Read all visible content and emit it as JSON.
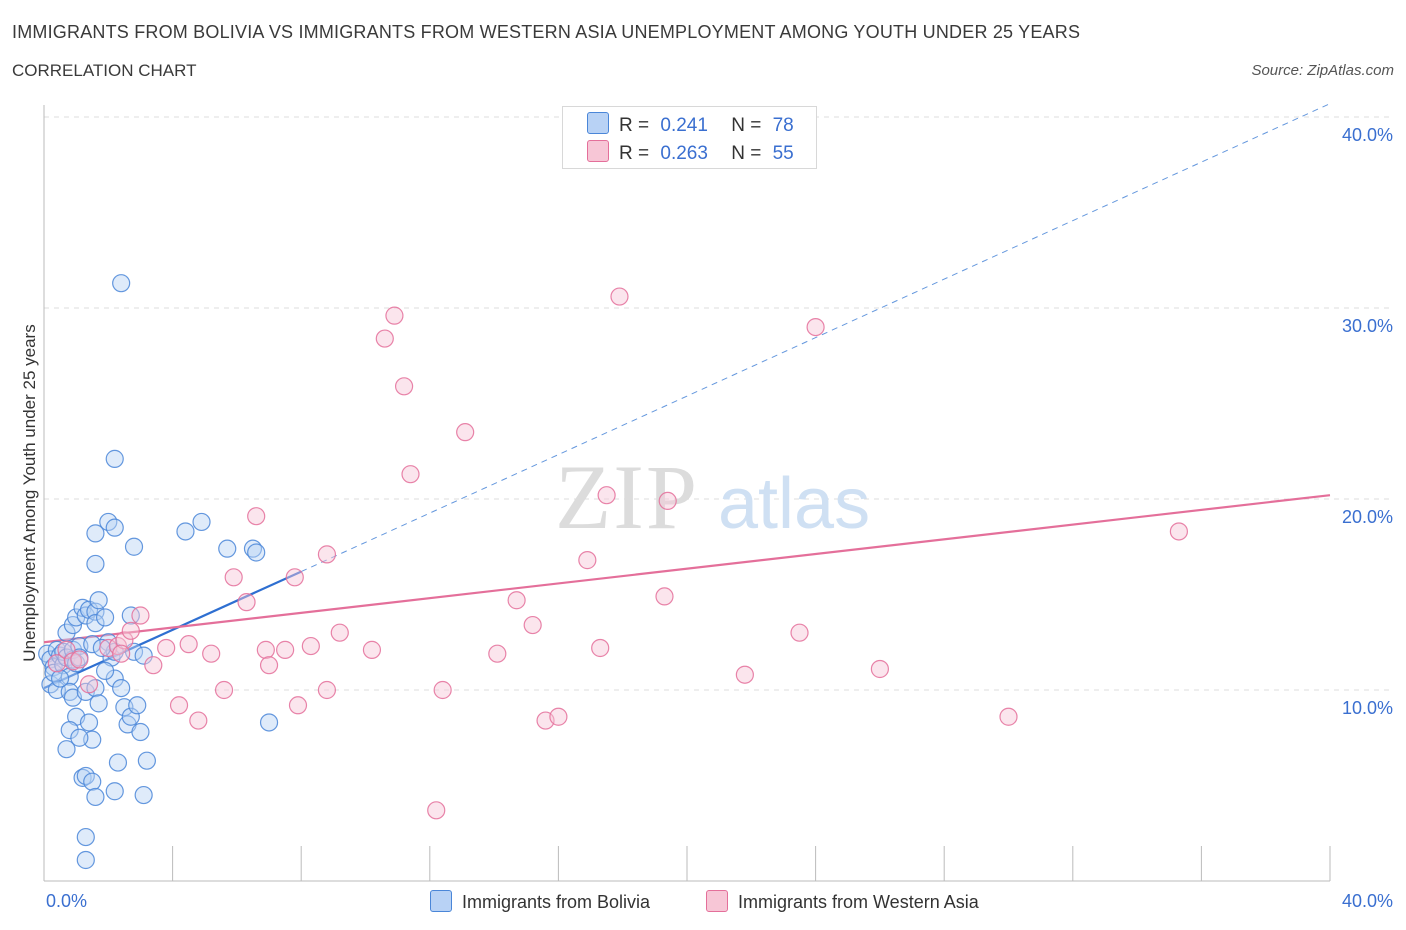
{
  "header": {
    "title": "IMMIGRANTS FROM BOLIVIA VS IMMIGRANTS FROM WESTERN ASIA UNEMPLOYMENT AMONG YOUTH UNDER 25 YEARS",
    "subtitle": "CORRELATION CHART",
    "source": "Source: ZipAtlas.com"
  },
  "colors": {
    "bolivia": "#4a86d8",
    "bolivia_fill": "#b8d2f5",
    "western_asia": "#e46f9a",
    "western_asia_fill": "#f7c6d6",
    "axis_label": "#3a6fd0",
    "grid": "#dcdcdc"
  },
  "legend_top": {
    "row1": {
      "r_label": "R =",
      "r_value": "0.241",
      "n_label": "N =",
      "n_value": "78"
    },
    "row2": {
      "r_label": "R =",
      "r_value": "0.263",
      "n_label": "N =",
      "n_value": "55"
    }
  },
  "legend_bottom": {
    "series1": "Immigrants from Bolivia",
    "series2": "Immigrants from Western Asia"
  },
  "watermark": {
    "zip": "ZIP",
    "atlas": "atlas"
  },
  "chart_data": {
    "type": "scatter",
    "title": "IMMIGRANTS FROM BOLIVIA VS IMMIGRANTS FROM WESTERN ASIA UNEMPLOYMENT AMONG YOUTH UNDER 25 YEARS",
    "xlabel": "",
    "ylabel": "Unemployment Among Youth under 25 years",
    "xlim": [
      0,
      40
    ],
    "ylim": [
      0,
      40
    ],
    "x_tick_labels": [
      "0.0%",
      "40.0%"
    ],
    "y_tick_values": [
      10,
      20,
      30,
      40
    ],
    "y_tick_labels": [
      "10.0%",
      "20.0%",
      "30.0%",
      "40.0%"
    ],
    "grid": true,
    "legend_position": "top-center",
    "series": [
      {
        "name": "Immigrants from Bolivia",
        "r": 0.241,
        "n": 78,
        "trend": {
          "x0": 0,
          "y0": 10.1,
          "x1": 8.0,
          "y1": 16.2,
          "dashed_extension_to": [
            40,
            40.7
          ]
        },
        "points": [
          [
            0.1,
            11.9
          ],
          [
            0.2,
            11.6
          ],
          [
            0.3,
            11.2
          ],
          [
            0.2,
            10.3
          ],
          [
            0.4,
            12.1
          ],
          [
            0.5,
            11.8
          ],
          [
            0.3,
            10.9
          ],
          [
            0.4,
            10.0
          ],
          [
            0.6,
            11.3
          ],
          [
            0.6,
            12.0
          ],
          [
            0.7,
            11.7
          ],
          [
            0.8,
            10.7
          ],
          [
            0.9,
            11.6
          ],
          [
            0.9,
            12.1
          ],
          [
            1.0,
            11.4
          ],
          [
            0.7,
            13.0
          ],
          [
            0.9,
            13.4
          ],
          [
            1.0,
            13.8
          ],
          [
            1.1,
            12.3
          ],
          [
            1.1,
            11.7
          ],
          [
            1.2,
            14.3
          ],
          [
            1.3,
            13.9
          ],
          [
            1.4,
            14.2
          ],
          [
            1.5,
            12.4
          ],
          [
            1.6,
            14.1
          ],
          [
            1.6,
            13.5
          ],
          [
            1.7,
            14.7
          ],
          [
            1.9,
            13.8
          ],
          [
            2.0,
            12.5
          ],
          [
            2.1,
            11.7
          ],
          [
            2.2,
            12.0
          ],
          [
            2.2,
            10.6
          ],
          [
            2.4,
            10.1
          ],
          [
            2.5,
            9.1
          ],
          [
            2.6,
            8.2
          ],
          [
            2.7,
            8.6
          ],
          [
            2.8,
            12.0
          ],
          [
            2.9,
            9.2
          ],
          [
            3.0,
            7.8
          ],
          [
            3.1,
            11.8
          ],
          [
            0.8,
            9.9
          ],
          [
            0.9,
            9.6
          ],
          [
            1.0,
            8.6
          ],
          [
            1.3,
            9.9
          ],
          [
            1.4,
            8.3
          ],
          [
            1.6,
            10.1
          ],
          [
            1.7,
            9.3
          ],
          [
            0.8,
            7.9
          ],
          [
            0.7,
            6.9
          ],
          [
            1.5,
            7.4
          ],
          [
            1.1,
            7.5
          ],
          [
            1.2,
            5.4
          ],
          [
            1.3,
            5.5
          ],
          [
            1.5,
            5.2
          ],
          [
            1.6,
            4.4
          ],
          [
            2.2,
            4.7
          ],
          [
            3.1,
            4.5
          ],
          [
            3.2,
            6.3
          ],
          [
            2.3,
            6.2
          ],
          [
            1.3,
            2.3
          ],
          [
            1.3,
            1.1
          ],
          [
            1.6,
            16.6
          ],
          [
            1.6,
            18.2
          ],
          [
            2.0,
            18.8
          ],
          [
            2.2,
            18.5
          ],
          [
            2.2,
            22.1
          ],
          [
            2.8,
            17.5
          ],
          [
            4.4,
            18.3
          ],
          [
            4.9,
            18.8
          ],
          [
            5.7,
            17.4
          ],
          [
            6.5,
            17.4
          ],
          [
            6.6,
            17.2
          ],
          [
            7.0,
            8.3
          ],
          [
            2.4,
            31.3
          ],
          [
            2.7,
            13.9
          ],
          [
            1.8,
            12.2
          ],
          [
            0.5,
            10.6
          ],
          [
            1.9,
            11.0
          ]
        ]
      },
      {
        "name": "Immigrants from Western Asia",
        "r": 0.263,
        "n": 55,
        "trend": {
          "x0": 0,
          "y0": 12.5,
          "x1": 40,
          "y1": 20.2
        },
        "points": [
          [
            0.4,
            11.4
          ],
          [
            0.7,
            12.1
          ],
          [
            0.9,
            11.5
          ],
          [
            1.1,
            11.6
          ],
          [
            1.4,
            10.3
          ],
          [
            2.0,
            12.2
          ],
          [
            2.3,
            12.3
          ],
          [
            2.5,
            12.6
          ],
          [
            2.7,
            13.1
          ],
          [
            3.0,
            13.9
          ],
          [
            3.4,
            11.3
          ],
          [
            3.8,
            12.2
          ],
          [
            4.2,
            9.2
          ],
          [
            4.5,
            12.4
          ],
          [
            4.8,
            8.4
          ],
          [
            5.2,
            11.9
          ],
          [
            5.6,
            10.0
          ],
          [
            5.9,
            15.9
          ],
          [
            6.3,
            14.6
          ],
          [
            6.6,
            19.1
          ],
          [
            6.9,
            12.1
          ],
          [
            7.0,
            11.3
          ],
          [
            7.5,
            12.1
          ],
          [
            7.8,
            15.9
          ],
          [
            7.9,
            9.2
          ],
          [
            8.3,
            12.3
          ],
          [
            8.8,
            17.1
          ],
          [
            8.8,
            10.0
          ],
          [
            9.2,
            13.0
          ],
          [
            10.2,
            12.1
          ],
          [
            10.6,
            28.4
          ],
          [
            10.9,
            29.6
          ],
          [
            11.2,
            25.9
          ],
          [
            11.4,
            21.3
          ],
          [
            12.2,
            3.7
          ],
          [
            12.4,
            10.0
          ],
          [
            13.1,
            23.5
          ],
          [
            14.1,
            11.9
          ],
          [
            14.7,
            14.7
          ],
          [
            15.2,
            13.4
          ],
          [
            15.6,
            8.4
          ],
          [
            16.0,
            8.6
          ],
          [
            16.9,
            16.8
          ],
          [
            17.3,
            12.2
          ],
          [
            17.5,
            20.2
          ],
          [
            17.9,
            30.6
          ],
          [
            19.3,
            14.9
          ],
          [
            19.4,
            19.9
          ],
          [
            21.8,
            10.8
          ],
          [
            23.5,
            13.0
          ],
          [
            24.0,
            29.0
          ],
          [
            26.0,
            11.1
          ],
          [
            30.0,
            8.6
          ],
          [
            35.3,
            18.3
          ],
          [
            2.4,
            11.9
          ]
        ]
      }
    ]
  }
}
